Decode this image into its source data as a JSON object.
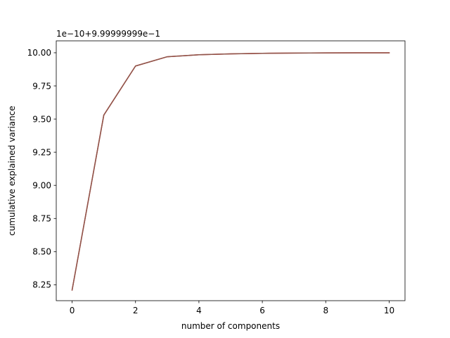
{
  "chart_data": {
    "type": "line",
    "title": "",
    "xlabel": "number of components",
    "ylabel": "cumulative explained variance",
    "offset_text": "1e−10+9.99999999e−1",
    "xlim": [
      -0.5,
      10.5
    ],
    "ylim": [
      8.13,
      10.09
    ],
    "grid": false,
    "x_ticks": [
      0,
      2,
      4,
      6,
      8,
      10
    ],
    "x_tick_labels": [
      "0",
      "2",
      "4",
      "6",
      "8",
      "10"
    ],
    "y_ticks": [
      8.25,
      8.5,
      8.75,
      9.0,
      9.25,
      9.5,
      9.75,
      10.0
    ],
    "y_tick_labels": [
      "8.25",
      "8.50",
      "8.75",
      "9.00",
      "9.25",
      "9.50",
      "9.75",
      "10.00"
    ],
    "series": [
      {
        "color": "#d62728",
        "x": [
          0,
          1,
          2,
          3,
          4,
          5,
          6,
          7,
          8,
          9,
          10
        ],
        "y": [
          8.21,
          9.53,
          9.9,
          9.97,
          9.985,
          9.992,
          9.996,
          9.998,
          9.999,
          9.9995,
          10.0
        ]
      },
      {
        "color": "#8c564b",
        "x": [
          0,
          1,
          2,
          3,
          4,
          5,
          6,
          7,
          8,
          9,
          10
        ],
        "y": [
          8.21,
          9.53,
          9.9,
          9.97,
          9.985,
          9.992,
          9.996,
          9.998,
          9.999,
          9.9995,
          10.0
        ]
      }
    ]
  }
}
